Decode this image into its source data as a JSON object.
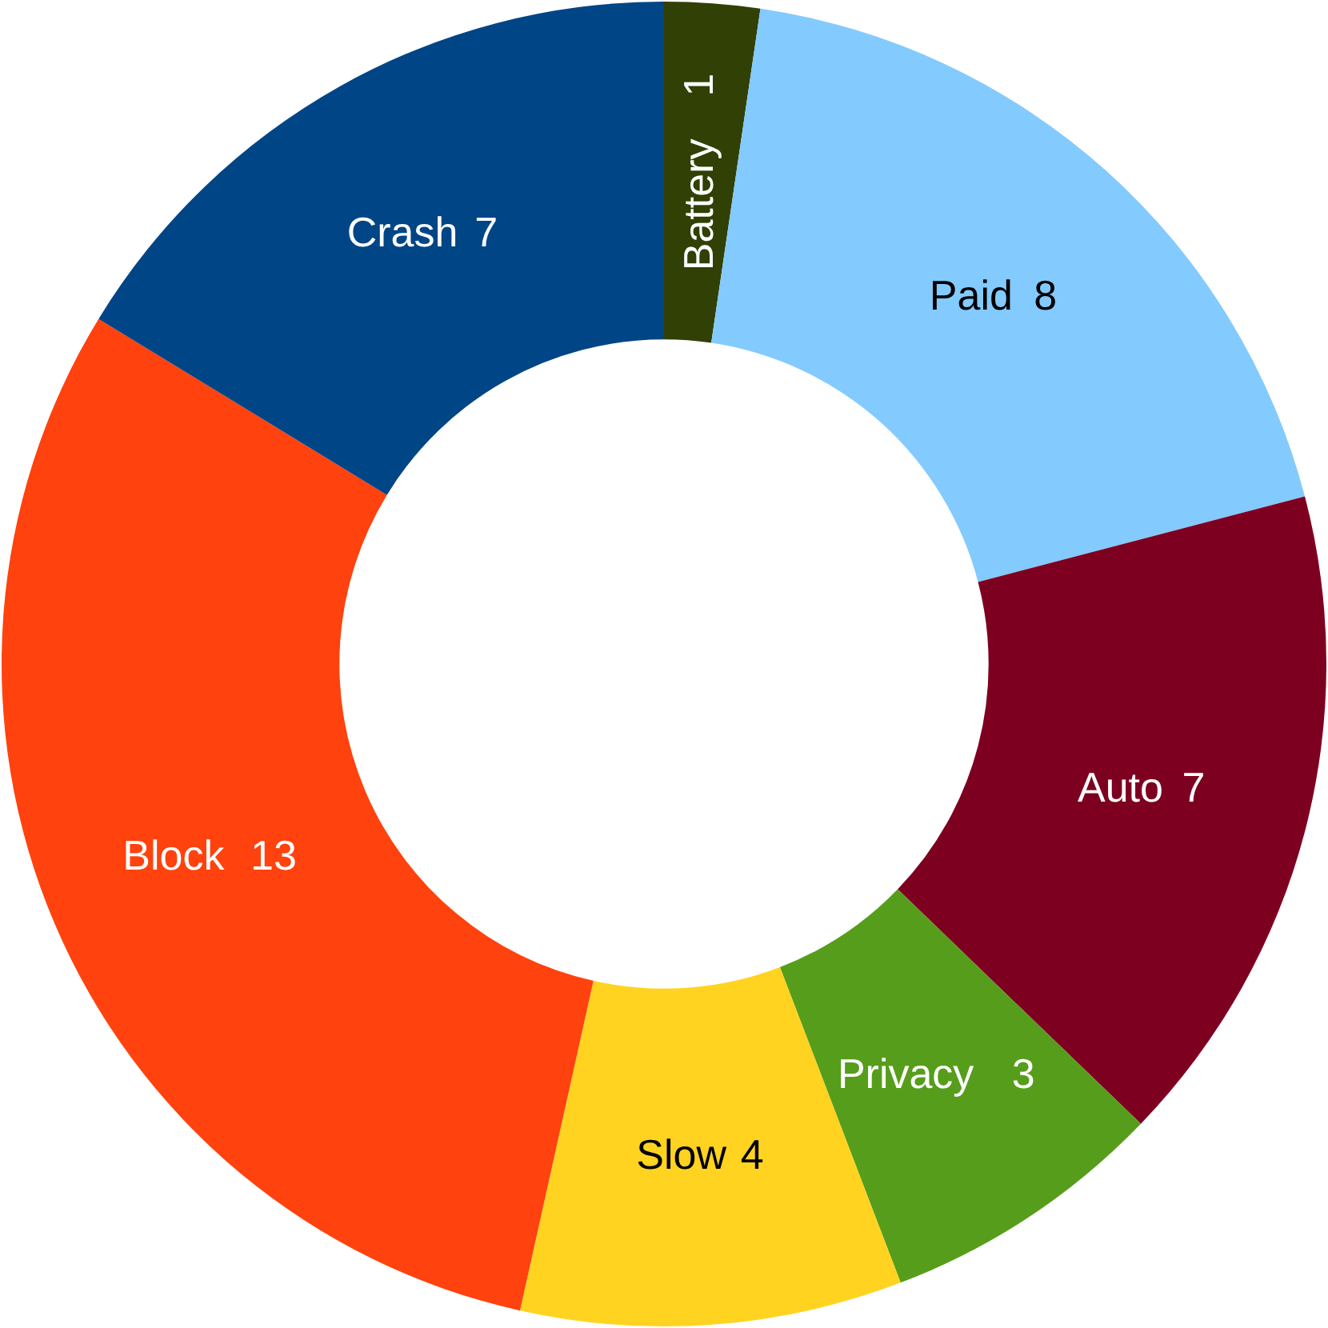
{
  "chart_data": {
    "type": "donut",
    "categories": [
      "Battery",
      "Paid",
      "Auto",
      "Privacy",
      "Slow",
      "Block",
      "Crash"
    ],
    "values": [
      1,
      8,
      7,
      3,
      4,
      13,
      7
    ],
    "colors": [
      "#314004",
      "#83caff",
      "#7e0021",
      "#579d1c",
      "#ffd320",
      "#ff420e",
      "#004586"
    ],
    "data_labels": true,
    "legend": false
  }
}
